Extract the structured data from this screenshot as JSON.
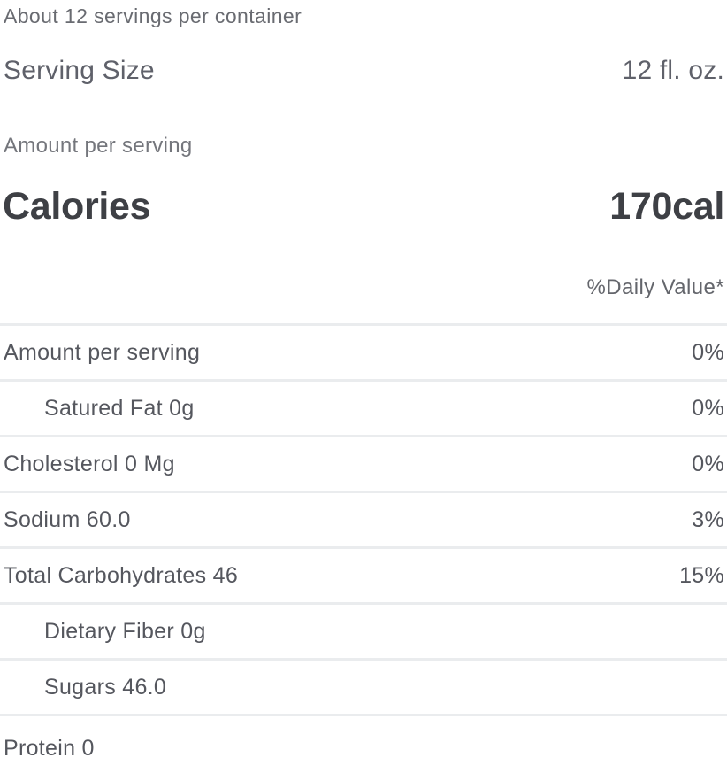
{
  "nutrition": {
    "servings_text": "About 12 servings per container",
    "serving_size": {
      "label": "Serving Size",
      "value": "12 fl. oz."
    },
    "amount_header": "Amount per serving",
    "calories": {
      "label": "Calories",
      "value": "170cal"
    },
    "daily_value_header": "%Daily Value*",
    "rows": [
      {
        "name": "Amount per serving",
        "daily_value": "0%"
      },
      {
        "name": "Satured Fat 0g",
        "daily_value": "0%"
      },
      {
        "name": "Cholesterol 0 Mg",
        "daily_value": "0%"
      },
      {
        "name": "Sodium 60.0",
        "daily_value": "3%"
      },
      {
        "name": "Total Carbohydrates 46",
        "daily_value": "15%"
      },
      {
        "name": "Dietary Fiber 0g",
        "daily_value": ""
      },
      {
        "name": "Sugars 46.0",
        "daily_value": ""
      },
      {
        "name": "Protein 0",
        "daily_value": ""
      }
    ],
    "colors": {
      "background": "#ffffff",
      "text_muted": "#696b71",
      "text_row": "#55575e",
      "text_strong": "#3e4045",
      "divider": "#eaecee"
    }
  }
}
